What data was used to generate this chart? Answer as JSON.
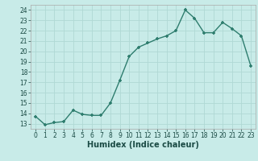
{
  "x": [
    0,
    1,
    2,
    3,
    4,
    5,
    6,
    7,
    8,
    9,
    10,
    11,
    12,
    13,
    14,
    15,
    16,
    17,
    18,
    19,
    20,
    21,
    22,
    23
  ],
  "y": [
    13.7,
    12.9,
    13.1,
    13.2,
    14.3,
    13.9,
    13.8,
    13.8,
    15.0,
    17.2,
    19.5,
    20.4,
    20.8,
    21.2,
    21.5,
    22.0,
    24.0,
    23.2,
    21.8,
    21.8,
    22.8,
    22.2,
    21.5,
    18.6
  ],
  "line_color": "#2e7d6e",
  "marker": "+",
  "markersize": 3.5,
  "bg_color": "#c8ebe8",
  "grid_color": "#b0d8d4",
  "xlabel": "Humidex (Indice chaleur)",
  "ylim": [
    12.5,
    24.5
  ],
  "xlim": [
    -0.5,
    23.5
  ],
  "yticks": [
    13,
    14,
    15,
    16,
    17,
    18,
    19,
    20,
    21,
    22,
    23,
    24
  ],
  "xticks": [
    0,
    1,
    2,
    3,
    4,
    5,
    6,
    7,
    8,
    9,
    10,
    11,
    12,
    13,
    14,
    15,
    16,
    17,
    18,
    19,
    20,
    21,
    22,
    23
  ],
  "xlabel_fontsize": 7,
  "tick_fontsize": 5.5,
  "linewidth": 1.0,
  "marker_color": "#2e7d6e"
}
